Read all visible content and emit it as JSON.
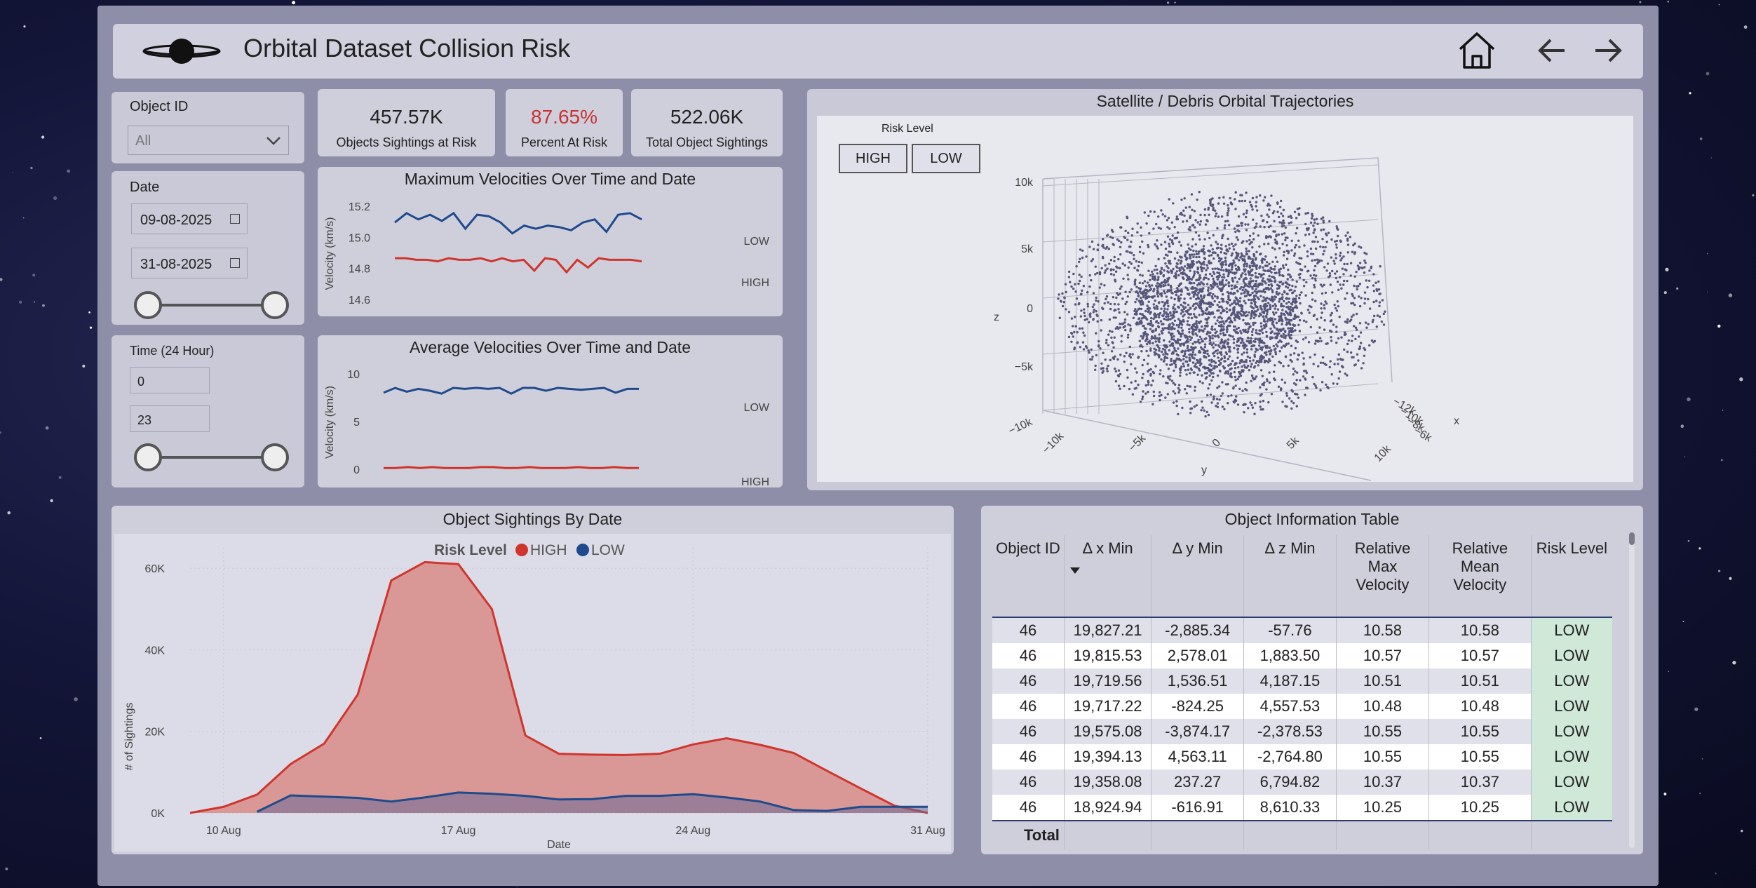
{
  "header": {
    "title": "Orbital Dataset Collision Risk",
    "icons": [
      "planet-logo-icon",
      "home-icon",
      "back-arrow-icon",
      "forward-arrow-icon"
    ]
  },
  "filters": {
    "object_id": {
      "label": "Object ID",
      "value": "All"
    },
    "date": {
      "label": "Date",
      "start": "09-08-2025",
      "end": "31-08-2025",
      "range_fraction": [
        0,
        1
      ]
    },
    "time": {
      "label": "Time (24 Hour)",
      "start": "0",
      "end": "23",
      "range_fraction": [
        0,
        1
      ]
    }
  },
  "kpis": [
    {
      "value": "457.57K",
      "label": "Objects Sightings at Risk",
      "color": "#222222"
    },
    {
      "value": "87.65%",
      "label": "Percent At Risk",
      "color": "#c83232"
    },
    {
      "value": "522.06K",
      "label": "Total Object Sightings",
      "color": "#222222"
    }
  ],
  "colors": {
    "high": "#d0352d",
    "low": "#1f4a8c",
    "table_risk_bg": "#cfe8d8"
  },
  "max_velocity_chart": {
    "title": "Maximum Velocities Over Time and Date",
    "ylabel": "Velocity (km/s)",
    "yticks": [
      "15.2",
      "15.0",
      "14.8",
      "14.6"
    ],
    "series_labels": {
      "low": "LOW",
      "high": "HIGH"
    }
  },
  "avg_velocity_chart": {
    "title": "Average Velocities Over Time and Date",
    "ylabel": "Velocity (km/s)",
    "yticks": [
      "10",
      "5",
      "0"
    ],
    "series_labels": {
      "low": "LOW",
      "high": "HIGH"
    }
  },
  "trajectory_chart": {
    "title": "Satellite / Debris Orbital Trajectories",
    "risk_level_label": "Risk Level",
    "buttons": [
      "HIGH",
      "LOW"
    ],
    "axis_labels": {
      "x": "x",
      "y": "y",
      "z": "z"
    },
    "z_ticks": [
      "10k",
      "5k",
      "0",
      "−5k",
      "−10k"
    ],
    "y_ticks": [
      "−10k",
      "−5k",
      "0",
      "5k",
      "10k"
    ],
    "x_ticks": [
      "−12k",
      "−10k",
      "−8k",
      "−6k"
    ]
  },
  "sightings_chart": {
    "title": "Object Sightings By Date",
    "legend_title": "Risk Level",
    "legend": [
      "HIGH",
      "LOW"
    ],
    "xlabel": "Date",
    "ylabel": "# of Sightings",
    "yticks": [
      "60K",
      "40K",
      "20K",
      "0K"
    ],
    "xticks": [
      "10 Aug",
      "17 Aug",
      "24 Aug",
      "31 Aug"
    ]
  },
  "chart_data": [
    {
      "type": "line",
      "title": "Maximum Velocities Over Time and Date",
      "ylabel": "Velocity (km/s)",
      "ylim": [
        14.55,
        15.25
      ],
      "series": [
        {
          "name": "LOW",
          "values": [
            15.1,
            15.16,
            15.12,
            15.15,
            15.11,
            15.16,
            15.06,
            15.15,
            15.14,
            15.1,
            15.03,
            15.08,
            15.06,
            15.08,
            15.07,
            15.05,
            15.1,
            15.12,
            15.04,
            15.15,
            15.16,
            15.12
          ]
        },
        {
          "name": "HIGH",
          "values": [
            14.87,
            14.87,
            14.86,
            14.86,
            14.85,
            14.87,
            14.86,
            14.86,
            14.87,
            14.85,
            14.87,
            14.85,
            14.86,
            14.79,
            14.87,
            14.86,
            14.78,
            14.86,
            14.81,
            14.87,
            14.86,
            14.86,
            14.86,
            14.85
          ]
        }
      ]
    },
    {
      "type": "line",
      "title": "Average Velocities Over Time and Date",
      "ylabel": "Velocity (km/s)",
      "ylim": [
        0,
        10
      ],
      "series": [
        {
          "name": "LOW",
          "values": [
            8.1,
            8.6,
            8.2,
            8.5,
            8.3,
            8.0,
            8.6,
            8.5,
            8.6,
            8.5,
            8.6,
            8.0,
            8.6,
            8.6,
            8.3,
            8.6,
            8.5,
            8.4,
            8.5,
            8.6,
            8.1,
            8.5,
            8.5
          ]
        },
        {
          "name": "HIGH",
          "values": [
            0.2,
            0.2,
            0.3,
            0.2,
            0.3,
            0.2,
            0.2,
            0.2,
            0.3,
            0.3,
            0.2,
            0.2,
            0.3,
            0.2,
            0.2,
            0.2,
            0.3,
            0.2,
            0.2,
            0.3,
            0.2,
            0.2
          ]
        }
      ]
    },
    {
      "type": "scatter",
      "title": "Satellite / Debris Orbital Trajectories",
      "note_values": "3D point cloud of orbital positions; outer shell radius about 10k, inner dense core radius about 5k"
    },
    {
      "type": "area",
      "title": "Object Sightings By Date",
      "xlabel": "Date",
      "ylabel": "# of Sightings",
      "x": [
        "9 Aug",
        "10 Aug",
        "11 Aug",
        "12 Aug",
        "13 Aug",
        "14 Aug",
        "15 Aug",
        "16 Aug",
        "17 Aug",
        "18 Aug",
        "19 Aug",
        "20 Aug",
        "21 Aug",
        "22 Aug",
        "23 Aug",
        "24 Aug",
        "25 Aug",
        "26 Aug",
        "27 Aug",
        "28 Aug",
        "29 Aug",
        "30 Aug",
        "31 Aug"
      ],
      "ylim": [
        0,
        65000
      ],
      "series": [
        {
          "name": "HIGH",
          "values": [
            0,
            1500,
            4500,
            12000,
            17000,
            29000,
            57000,
            61500,
            61000,
            50000,
            19000,
            14500,
            14300,
            14200,
            14500,
            16800,
            18300,
            16700,
            14700,
            10300,
            6000,
            1800,
            0
          ]
        },
        {
          "name": "LOW",
          "values": [
            null,
            null,
            300,
            4300,
            4000,
            3700,
            2800,
            3800,
            5000,
            4700,
            4200,
            3300,
            3400,
            4200,
            4200,
            4600,
            3800,
            2800,
            700,
            500,
            1500,
            1500,
            1500
          ]
        }
      ]
    }
  ],
  "table": {
    "title": "Object Information Table",
    "columns": [
      "Object ID",
      "Δ x Min",
      "Δ y Min",
      "Δ z Min",
      "Relative Max Velocity",
      "Relative Mean Velocity",
      "Risk Level"
    ],
    "rows": [
      [
        "46",
        "19,827.21",
        "-2,885.34",
        "-57.76",
        "10.58",
        "10.58",
        "LOW"
      ],
      [
        "46",
        "19,815.53",
        "2,578.01",
        "1,883.50",
        "10.57",
        "10.57",
        "LOW"
      ],
      [
        "46",
        "19,719.56",
        "1,536.51",
        "4,187.15",
        "10.51",
        "10.51",
        "LOW"
      ],
      [
        "46",
        "19,717.22",
        "-824.25",
        "4,557.53",
        "10.48",
        "10.48",
        "LOW"
      ],
      [
        "46",
        "19,575.08",
        "-3,874.17",
        "-2,378.53",
        "10.55",
        "10.55",
        "LOW"
      ],
      [
        "46",
        "19,394.13",
        "4,563.11",
        "-2,764.80",
        "10.55",
        "10.55",
        "LOW"
      ],
      [
        "46",
        "19,358.08",
        "237.27",
        "6,794.82",
        "10.37",
        "10.37",
        "LOW"
      ],
      [
        "46",
        "18,924.94",
        "-616.91",
        "8,610.33",
        "10.25",
        "10.25",
        "LOW"
      ]
    ],
    "total_label": "Total"
  }
}
